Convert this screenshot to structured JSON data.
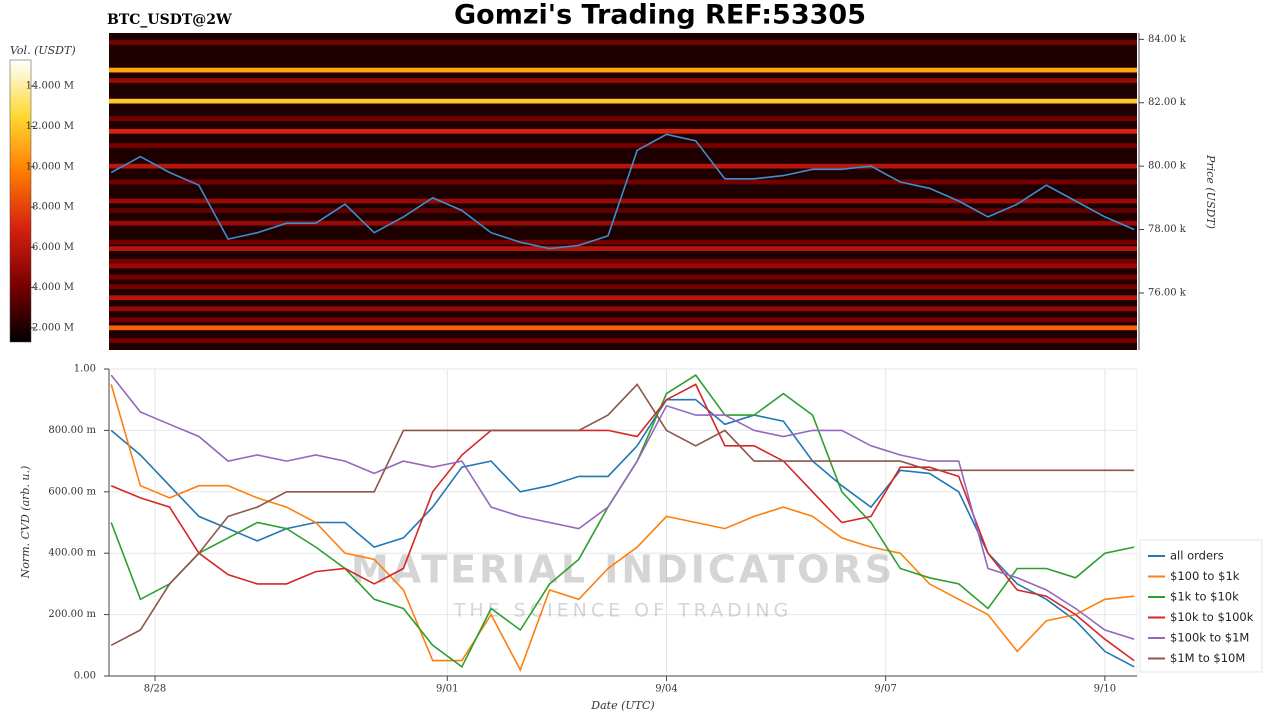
{
  "page_title": "Gomzi's Trading REF:53305",
  "watermark": {
    "title": "MATERIAL INDICATORS",
    "subtitle": "THE SCIENCE OF TRADING"
  },
  "chart_data": [
    {
      "type": "heatmap",
      "title": "BTC_USDT@2W",
      "ylabel": "Price (USDT)",
      "colorbar_label": "Vol. (USDT)",
      "colorscale": [
        "#000000",
        "#7a0000",
        "#d42010",
        "#ff7a00",
        "#ffd830",
        "#ffffff"
      ],
      "clim": [
        1300000,
        15300000
      ],
      "cticks": [
        {
          "value": 2000000,
          "label": "2.000 M"
        },
        {
          "value": 4000000,
          "label": "4.000 M"
        },
        {
          "value": 6000000,
          "label": "6.000 M"
        },
        {
          "value": 8000000,
          "label": "8.000 M"
        },
        {
          "value": 10000000,
          "label": "10.000 M"
        },
        {
          "value": 12000000,
          "label": "12.000 M"
        },
        {
          "value": 14000000,
          "label": "14.000 M"
        }
      ],
      "xlim": [
        27.37,
        41.44
      ],
      "ylim": [
        74200,
        84200
      ],
      "yticks": [
        {
          "value": 76000,
          "label": "76.00 k"
        },
        {
          "value": 78000,
          "label": "78.00 k"
        },
        {
          "value": 80000,
          "label": "80.00 k"
        },
        {
          "value": 82000,
          "label": "82.00 k"
        },
        {
          "value": 84000,
          "label": "84.00 k"
        }
      ],
      "levels": [
        83900,
        83030,
        82700,
        82050,
        81500,
        81100,
        80650,
        80000,
        79500,
        78900,
        78600,
        78200,
        77600,
        77400,
        77000,
        76850,
        76500,
        76200,
        75850,
        75500,
        75150,
        74900,
        74500
      ],
      "volumes": [
        4000000,
        11000000,
        5000000,
        12000000,
        4000000,
        7000000,
        4000000,
        6000000,
        4000000,
        5000000,
        3500000,
        5000000,
        4000000,
        6000000,
        4000000,
        5000000,
        4000000,
        4000000,
        6000000,
        5000000,
        4000000,
        9000000,
        4000000
      ],
      "x": [
        27.4,
        27.8,
        28.2,
        28.6,
        29.0,
        29.4,
        29.8,
        30.2,
        30.6,
        31.0,
        31.4,
        31.8,
        32.2,
        32.6,
        33.0,
        33.4,
        33.8,
        34.2,
        34.6,
        35.0,
        35.4,
        35.8,
        36.2,
        36.6,
        37.0,
        37.4,
        37.8,
        38.2,
        38.6,
        39.0,
        39.4,
        39.8,
        40.2,
        40.6,
        41.0,
        41.4
      ],
      "series": [
        {
          "color": "#3a8fd0",
          "values": [
            79800,
            80300,
            79800,
            79400,
            77700,
            77900,
            78200,
            78200,
            78800,
            77900,
            78400,
            79000,
            78600,
            77900,
            77600,
            77400,
            77500,
            77800,
            80500,
            81000,
            80800,
            79600,
            79600,
            79700,
            79900,
            79900,
            80000,
            79500,
            79300,
            78900,
            78400,
            78800,
            79400,
            78900,
            78400,
            78000
          ]
        }
      ]
    },
    {
      "type": "line",
      "ylabel": "Norm. CVD (arb. u.)",
      "xlabel": "Date (UTC)",
      "grid": true,
      "xlim": [
        27.37,
        41.44
      ],
      "ylim": [
        0,
        1
      ],
      "xticks": [
        {
          "value": 28,
          "label": "8/28"
        },
        {
          "value": 32,
          "label": "9/01"
        },
        {
          "value": 35,
          "label": "9/04"
        },
        {
          "value": 38,
          "label": "9/07"
        },
        {
          "value": 41,
          "label": "9/10"
        }
      ],
      "yticks": [
        {
          "value": 0,
          "label": "0.00"
        },
        {
          "value": 0.2,
          "label": "200.00 m"
        },
        {
          "value": 0.4,
          "label": "400.00 m"
        },
        {
          "value": 0.6,
          "label": "600.00 m"
        },
        {
          "value": 0.8,
          "label": "800.00 m"
        },
        {
          "value": 1,
          "label": "1.00"
        }
      ],
      "x": [
        27.4,
        27.8,
        28.2,
        28.6,
        29.0,
        29.4,
        29.8,
        30.2,
        30.6,
        31.0,
        31.4,
        31.8,
        32.2,
        32.6,
        33.0,
        33.4,
        33.8,
        34.2,
        34.6,
        35.0,
        35.4,
        35.8,
        36.2,
        36.6,
        37.0,
        37.4,
        37.8,
        38.2,
        38.6,
        39.0,
        39.4,
        39.8,
        40.2,
        40.6,
        41.0,
        41.4
      ],
      "series": [
        {
          "name": "all orders",
          "color": "#1f77b4",
          "values": [
            0.8,
            0.72,
            0.62,
            0.52,
            0.48,
            0.44,
            0.48,
            0.5,
            0.5,
            0.42,
            0.45,
            0.55,
            0.68,
            0.7,
            0.6,
            0.62,
            0.65,
            0.65,
            0.75,
            0.9,
            0.9,
            0.82,
            0.85,
            0.83,
            0.7,
            0.62,
            0.55,
            0.67,
            0.66,
            0.6,
            0.4,
            0.3,
            0.25,
            0.18,
            0.08,
            0.03
          ]
        },
        {
          "name": "$100 to $1k",
          "color": "#ff7f0e",
          "values": [
            0.95,
            0.62,
            0.58,
            0.62,
            0.62,
            0.58,
            0.55,
            0.5,
            0.4,
            0.38,
            0.28,
            0.05,
            0.05,
            0.2,
            0.02,
            0.28,
            0.25,
            0.35,
            0.42,
            0.52,
            0.5,
            0.48,
            0.52,
            0.55,
            0.52,
            0.45,
            0.42,
            0.4,
            0.3,
            0.25,
            0.2,
            0.08,
            0.18,
            0.2,
            0.25,
            0.26
          ]
        },
        {
          "name": "$1k to $10k",
          "color": "#2ca02c",
          "values": [
            0.5,
            0.25,
            0.3,
            0.4,
            0.45,
            0.5,
            0.48,
            0.42,
            0.35,
            0.25,
            0.22,
            0.1,
            0.03,
            0.22,
            0.15,
            0.3,
            0.38,
            0.55,
            0.7,
            0.92,
            0.98,
            0.85,
            0.85,
            0.92,
            0.85,
            0.6,
            0.5,
            0.35,
            0.32,
            0.3,
            0.22,
            0.35,
            0.35,
            0.32,
            0.4,
            0.42
          ]
        },
        {
          "name": "$10k to $100k",
          "color": "#d62728",
          "values": [
            0.62,
            0.58,
            0.55,
            0.4,
            0.33,
            0.3,
            0.3,
            0.34,
            0.35,
            0.3,
            0.35,
            0.6,
            0.72,
            0.8,
            0.8,
            0.8,
            0.8,
            0.8,
            0.78,
            0.9,
            0.95,
            0.75,
            0.75,
            0.7,
            0.6,
            0.5,
            0.52,
            0.68,
            0.68,
            0.65,
            0.4,
            0.28,
            0.26,
            0.2,
            0.12,
            0.05
          ]
        },
        {
          "name": "$100k to $1M",
          "color": "#9467bd",
          "values": [
            0.98,
            0.86,
            0.82,
            0.78,
            0.7,
            0.72,
            0.7,
            0.72,
            0.7,
            0.66,
            0.7,
            0.68,
            0.7,
            0.55,
            0.52,
            0.5,
            0.48,
            0.55,
            0.7,
            0.88,
            0.85,
            0.85,
            0.8,
            0.78,
            0.8,
            0.8,
            0.75,
            0.72,
            0.7,
            0.7,
            0.35,
            0.32,
            0.28,
            0.22,
            0.15,
            0.12
          ]
        },
        {
          "name": "$1M to $10M",
          "color": "#8c564b",
          "values": [
            0.1,
            0.15,
            0.3,
            0.4,
            0.52,
            0.55,
            0.6,
            0.6,
            0.6,
            0.6,
            0.8,
            0.8,
            0.8,
            0.8,
            0.8,
            0.8,
            0.8,
            0.85,
            0.95,
            0.8,
            0.75,
            0.8,
            0.7,
            0.7,
            0.7,
            0.7,
            0.7,
            0.7,
            0.67,
            0.67,
            0.67,
            0.67,
            0.67,
            0.67,
            0.67,
            0.67
          ]
        }
      ]
    }
  ]
}
